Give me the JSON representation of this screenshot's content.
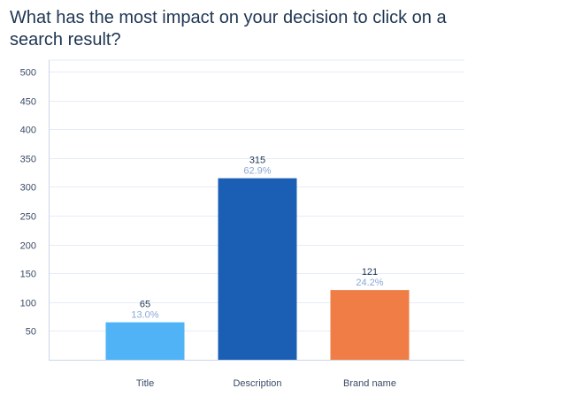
{
  "chart_data": {
    "type": "bar",
    "title": "What has the most impact on your decision to click on a search result?",
    "xlabel": "",
    "ylabel": "",
    "ylim": [
      0,
      520
    ],
    "yticks": [
      50,
      100,
      150,
      200,
      250,
      300,
      350,
      400,
      450,
      500
    ],
    "grid": true,
    "categories": [
      "Title",
      "Description",
      "Brand name"
    ],
    "values": [
      65,
      315,
      121
    ],
    "percent_labels": [
      "13.0%",
      "62.9%",
      "24.2%"
    ],
    "colors": [
      "#4fb3f5",
      "#1b5fb4",
      "#ef7d45"
    ],
    "percent_label_colors": [
      "#8aa8d6",
      "#8aa8d6",
      "#8aa8d6"
    ]
  }
}
